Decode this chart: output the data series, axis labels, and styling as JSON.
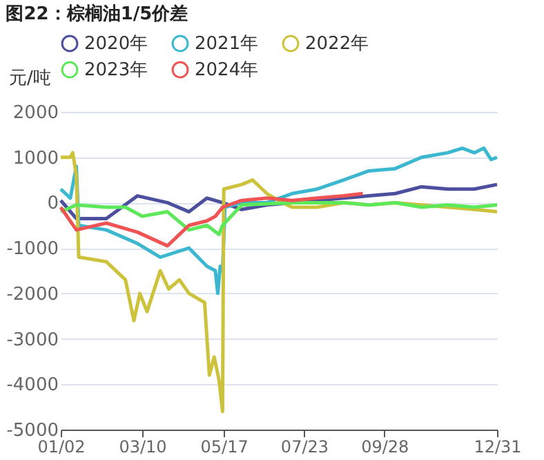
{
  "chart_data": {
    "type": "line",
    "title": "图22：棕榈油1/5价差",
    "ylabel": "元/吨",
    "xlim": [
      "--01-02",
      "--12-31"
    ],
    "xticks": [
      {
        "value": "--01-02",
        "label": "01/02"
      },
      {
        "value": "--03-10",
        "label": "03/10"
      },
      {
        "value": "--05-17",
        "label": "05/17"
      },
      {
        "value": "--07-23",
        "label": "07/23"
      },
      {
        "value": "--09-28",
        "label": "09/28"
      },
      {
        "value": "--12-31",
        "label": "12/31"
      }
    ],
    "ylim": [
      -5000,
      2000
    ],
    "yticks": [
      -5000,
      -4000,
      -3000,
      -2000,
      -1000,
      0,
      1000,
      2000
    ],
    "grid": "y",
    "legend": "top left",
    "marker": "none",
    "line_style": "solid",
    "series": [
      {
        "name": "2020年",
        "color": "#4b4f9e",
        "x": [
          "--01-02",
          "--01-15",
          "--02-09",
          "--03-06",
          "--03-31",
          "--04-18",
          "--05-03",
          "--05-16",
          "--06-01",
          "--06-22",
          "--07-13",
          "--08-03",
          "--08-25",
          "--09-15",
          "--10-07",
          "--10-29",
          "--11-20",
          "--12-12",
          "--12-31"
        ],
        "values": [
          50,
          -350,
          -350,
          150,
          0,
          -200,
          100,
          0,
          -150,
          -50,
          0,
          50,
          100,
          150,
          200,
          350,
          300,
          300,
          400
        ]
      },
      {
        "name": "2021年",
        "color": "#3bb8d0",
        "x": [
          "--01-02",
          "--01-10",
          "--01-15",
          "--01-17",
          "--02-09",
          "--03-06",
          "--03-25",
          "--04-18",
          "--05-03",
          "--05-10",
          "--05-12",
          "--05-14",
          "--05-16",
          "--05-18",
          "--06-01",
          "--06-22",
          "--07-13",
          "--08-03",
          "--08-25",
          "--09-15",
          "--10-07",
          "--10-29",
          "--11-20",
          "--12-02",
          "--12-12",
          "--12-20",
          "--12-26",
          "--12-31"
        ],
        "values": [
          300,
          100,
          800,
          -500,
          -600,
          -900,
          -1200,
          -1000,
          -1400,
          -1500,
          -2000,
          -1400,
          -1500,
          -100,
          0,
          0,
          200,
          300,
          500,
          700,
          750,
          1000,
          1100,
          1200,
          1100,
          1200,
          950,
          1000
        ]
      },
      {
        "name": "2022年",
        "color": "#cdc23c",
        "x": [
          "--01-02",
          "--01-10",
          "--01-12",
          "--01-15",
          "--01-17",
          "--02-09",
          "--02-25",
          "--03-03",
          "--03-08",
          "--03-14",
          "--03-25",
          "--04-01",
          "--04-10",
          "--04-18",
          "--05-01",
          "--05-05",
          "--05-09",
          "--05-13",
          "--05-16",
          "--05-17",
          "--06-01",
          "--06-10",
          "--06-22",
          "--07-05",
          "--07-13",
          "--08-03",
          "--08-25",
          "--09-15",
          "--10-07",
          "--10-29",
          "--11-20",
          "--12-12",
          "--12-31"
        ],
        "values": [
          1000,
          1000,
          1100,
          600,
          -1200,
          -1300,
          -1700,
          -2600,
          -2000,
          -2400,
          -1500,
          -1900,
          -1700,
          -2000,
          -2200,
          -3800,
          -3400,
          -3900,
          -4600,
          300,
          400,
          500,
          200,
          0,
          -100,
          -100,
          0,
          -50,
          0,
          -50,
          -100,
          -150,
          -200
        ]
      },
      {
        "name": "2023年",
        "color": "#5de85a",
        "x": [
          "--01-02",
          "--01-15",
          "--02-09",
          "--02-25",
          "--03-10",
          "--03-31",
          "--04-18",
          "--05-03",
          "--05-13",
          "--05-16",
          "--06-01",
          "--07-13",
          "--08-25",
          "--09-15",
          "--10-07",
          "--10-29",
          "--11-20",
          "--12-12",
          "--12-31"
        ],
        "values": [
          -200,
          -50,
          -100,
          -100,
          -300,
          -200,
          -600,
          -500,
          -700,
          -500,
          -50,
          0,
          0,
          -50,
          0,
          -100,
          -50,
          -100,
          -50
        ]
      },
      {
        "name": "2024年",
        "color": "#ef5353",
        "x": [
          "--01-02",
          "--01-15",
          "--02-09",
          "--03-06",
          "--03-31",
          "--04-18",
          "--05-03",
          "--05-10",
          "--05-16",
          "--06-01",
          "--06-22",
          "--07-13",
          "--08-03",
          "--08-25",
          "--09-10"
        ],
        "values": [
          -100,
          -600,
          -450,
          -650,
          -950,
          -500,
          -400,
          -300,
          -100,
          50,
          100,
          50,
          100,
          150,
          200
        ]
      }
    ]
  }
}
